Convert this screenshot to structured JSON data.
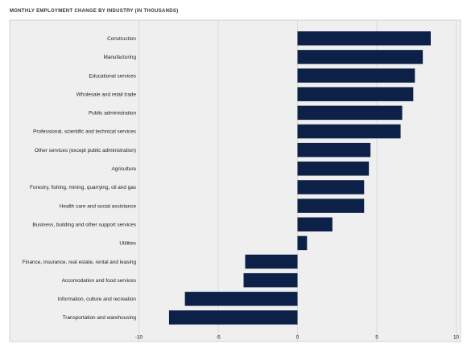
{
  "chart_data": {
    "type": "bar",
    "orientation": "horizontal",
    "title": "MONTHLY EMPLOYMENT CHANGE BY INDUSTRY (IN THOUSANDS)",
    "categories": [
      "Construction",
      "Manufacturing",
      "Educational services",
      "Wholesale and retail trade",
      "Public administration",
      "Professional, scientific and technical services",
      "Other services (except public administration)",
      "Agriculture",
      "Forestry, fishing, mining, quarrying, oil and gas",
      "Health care and social assistance",
      "Business, building and other support services",
      "Utilities",
      "Finance, insurance, real estate, rental and leasing",
      "Accomodation and food services",
      "Information, culture and recreation",
      "Transportation and warehousing"
    ],
    "values": [
      8.4,
      7.9,
      7.4,
      7.3,
      6.6,
      6.5,
      4.6,
      4.5,
      4.2,
      4.2,
      2.2,
      0.6,
      -3.3,
      -3.4,
      -7.1,
      -8.1
    ],
    "xlim": [
      -10,
      10
    ],
    "xticks": [
      "-10",
      "-5",
      "0",
      "5",
      "10"
    ],
    "xtick_values": [
      -10,
      -5,
      0,
      5,
      10
    ],
    "grid": true,
    "legend": "none",
    "colors": {
      "bar": "#0d2148",
      "plot_background": "#efefef",
      "grid": "#d6d6d6",
      "border": "#c8c8c8"
    }
  }
}
